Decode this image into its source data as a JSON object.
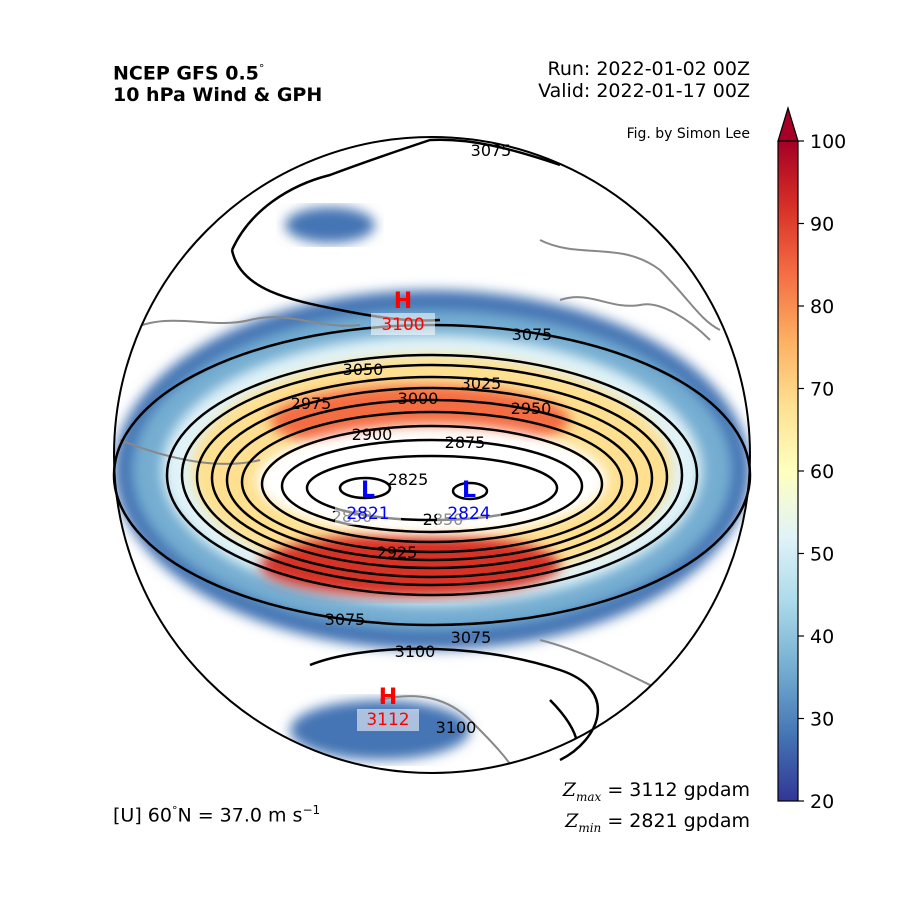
{
  "header": {
    "model_line": "NCEP GFS 0.5",
    "model_degree": "°",
    "field_line": "10 hPa Wind & GPH",
    "run": "Run: 2022-01-02 00Z",
    "valid": "Valid: 2022-01-17 00Z",
    "credit": "Fig. by Simon Lee"
  },
  "footer": {
    "mean_wind_prefix": "[U] 60",
    "mean_wind_unit": "N = 37.0 m s",
    "mean_wind_exp": "−1",
    "degree": "°",
    "zmax_symbol": "Z",
    "zmax_sub": "max",
    "zmax_value": "= 3112 gpdam",
    "zmin_symbol": "Z",
    "zmin_sub": "min",
    "zmin_value": "= 2821 gpdam"
  },
  "colorbar": {
    "ticks": [
      "20",
      "30",
      "40",
      "50",
      "60",
      "70",
      "80",
      "90",
      "100"
    ],
    "range": [
      20,
      100
    ],
    "extend": "max",
    "colors": [
      "#313695",
      "#4575b4",
      "#74add1",
      "#abd9e9",
      "#e0f3f8",
      "#ffffbf",
      "#fee090",
      "#fdae61",
      "#f46d43",
      "#d73027",
      "#a50026"
    ]
  },
  "markers": {
    "high_symbol": "H",
    "low_symbol": "L",
    "high_color": "#ff0000",
    "low_color": "#0000ff",
    "highs": [
      {
        "value": "3100"
      },
      {
        "value": "3112"
      }
    ],
    "lows": [
      {
        "value": "2821"
      },
      {
        "value": "2824"
      }
    ]
  },
  "contours": {
    "interval": 25,
    "labels": [
      "3075",
      "3075",
      "3050",
      "3025",
      "3000",
      "2975",
      "2950",
      "2900",
      "2875",
      "2825",
      "2850",
      "2850",
      "2925",
      "3075",
      "3075",
      "3100",
      "3100"
    ]
  }
}
